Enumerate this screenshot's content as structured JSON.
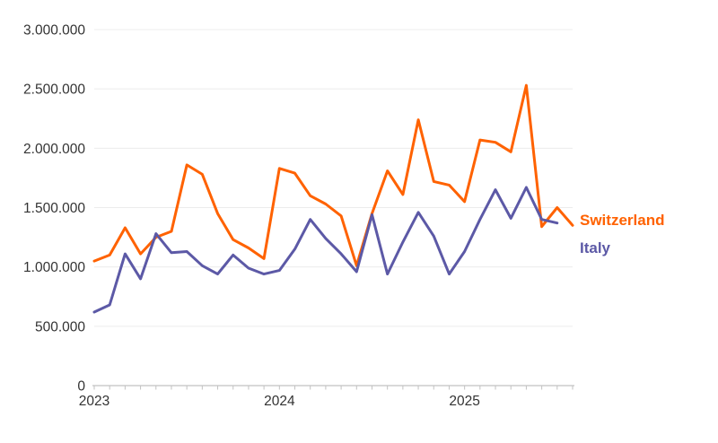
{
  "chart_data": {
    "type": "line",
    "title": "",
    "xlabel": "",
    "ylabel": "",
    "x_unit": "month",
    "n_points": 32,
    "x_labels": [
      "Jan 2023",
      "Feb 2023",
      "Mar 2023",
      "Apr 2023",
      "May 2023",
      "Jun 2023",
      "Jul 2023",
      "Aug 2023",
      "Sep 2023",
      "Oct 2023",
      "Nov 2023",
      "Dec 2023",
      "Jan 2024",
      "Feb 2024",
      "Mar 2024",
      "Apr 2024",
      "May 2024",
      "Jun 2024",
      "Jul 2024",
      "Aug 2024",
      "Sep 2024",
      "Oct 2024",
      "Nov 2024",
      "Dec 2024",
      "Jan 2025",
      "Feb 2025",
      "Mar 2025",
      "Apr 2025",
      "May 2025",
      "Jun 2025",
      "Jul 2025",
      "Aug 2025"
    ],
    "year_ticks": [
      {
        "index": 0,
        "label": "2023"
      },
      {
        "index": 12,
        "label": "2024"
      },
      {
        "index": 24,
        "label": "2025"
      }
    ],
    "y_ticks": [
      {
        "value": 0,
        "label": "0"
      },
      {
        "value": 500000,
        "label": "500.000"
      },
      {
        "value": 1000000,
        "label": "1.000.000"
      },
      {
        "value": 1500000,
        "label": "1.500.000"
      },
      {
        "value": 2000000,
        "label": "2.000.000"
      },
      {
        "value": 2500000,
        "label": "2.500.000"
      },
      {
        "value": 3000000,
        "label": "3.000.000"
      }
    ],
    "ylim": [
      0,
      3000000
    ],
    "grid": "horizontal",
    "legend_position": "line-end-labels",
    "series": [
      {
        "name": "Switzerland",
        "color": "#ff6200",
        "values": [
          1050000,
          1100000,
          1330000,
          1110000,
          1250000,
          1300000,
          1860000,
          1780000,
          1450000,
          1230000,
          1160000,
          1070000,
          1830000,
          1790000,
          1600000,
          1530000,
          1430000,
          1010000,
          1450000,
          1810000,
          1610000,
          2240000,
          1720000,
          1690000,
          1550000,
          2070000,
          2050000,
          1970000,
          2530000,
          1340000,
          1500000,
          1350000
        ]
      },
      {
        "name": "Italy",
        "color": "#5c59a6",
        "values": [
          620000,
          680000,
          1110000,
          900000,
          1280000,
          1120000,
          1130000,
          1010000,
          940000,
          1100000,
          990000,
          940000,
          970000,
          1150000,
          1400000,
          1240000,
          1110000,
          960000,
          1440000,
          940000,
          1210000,
          1460000,
          1260000,
          940000,
          1130000,
          1400000,
          1650000,
          1410000,
          1670000,
          1400000,
          1370000,
          null
        ]
      }
    ]
  },
  "style": {
    "grid_color": "#ececec",
    "axis_color": "#c2c2c2",
    "text_color": "#333333",
    "background": "#ffffff",
    "line_width": 3
  }
}
